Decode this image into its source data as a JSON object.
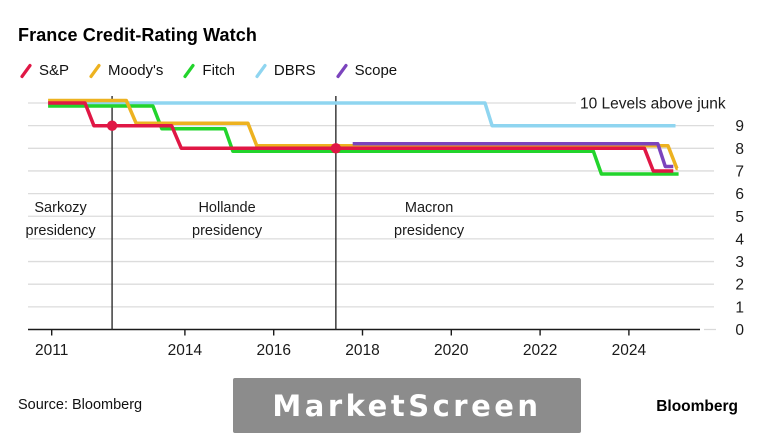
{
  "title": "France Credit-Rating Watch",
  "legend": [
    {
      "label": "S&P",
      "color": "#e01745"
    },
    {
      "label": "Moody's",
      "color": "#edb220"
    },
    {
      "label": "Fitch",
      "color": "#22d42c"
    },
    {
      "label": "DBRS",
      "color": "#8fd5f0"
    },
    {
      "label": "Scope",
      "color": "#7b44bd"
    }
  ],
  "chart_data": {
    "type": "line",
    "title": "France Credit-Rating Watch",
    "unit_label": "Levels above junk",
    "ytop_label": "10 Levels above junk",
    "ylim": [
      0,
      10
    ],
    "yticks": [
      0,
      1,
      2,
      3,
      4,
      5,
      6,
      7,
      8,
      9
    ],
    "xticks": [
      2011,
      2014,
      2016,
      2018,
      2020,
      2022,
      2024
    ],
    "xlim": [
      2010.9,
      2025.2
    ],
    "grid": true,
    "legend_position": "top-left",
    "series": [
      {
        "name": "S&P",
        "color": "#e01745",
        "points": [
          [
            2010.92,
            10
          ],
          [
            2011.75,
            10
          ],
          [
            2011.95,
            9
          ],
          [
            2013.7,
            9
          ],
          [
            2013.92,
            8
          ],
          [
            2024.35,
            8
          ],
          [
            2024.55,
            7
          ],
          [
            2025.0,
            7
          ]
        ]
      },
      {
        "name": "Moody's",
        "color": "#edb220",
        "points": [
          [
            2010.92,
            10
          ],
          [
            2012.68,
            10
          ],
          [
            2012.9,
            9
          ],
          [
            2015.42,
            9
          ],
          [
            2015.62,
            8
          ],
          [
            2024.88,
            8
          ],
          [
            2025.08,
            7
          ],
          [
            2025.1,
            7
          ]
        ]
      },
      {
        "name": "Fitch",
        "color": "#22d42c",
        "points": [
          [
            2010.92,
            10
          ],
          [
            2013.28,
            10
          ],
          [
            2013.48,
            9
          ],
          [
            2014.9,
            9
          ],
          [
            2015.08,
            8
          ],
          [
            2023.2,
            8
          ],
          [
            2023.38,
            7
          ],
          [
            2025.12,
            7
          ]
        ]
      },
      {
        "name": "DBRS",
        "color": "#8fd5f0",
        "points": [
          [
            2010.92,
            10
          ],
          [
            2020.76,
            10
          ],
          [
            2020.92,
            9
          ],
          [
            2025.05,
            9
          ]
        ]
      },
      {
        "name": "Scope",
        "color": "#7b44bd",
        "points": [
          [
            2017.78,
            8
          ],
          [
            2024.65,
            8
          ],
          [
            2024.82,
            7
          ],
          [
            2025.0,
            7
          ]
        ]
      }
    ],
    "markers": [
      {
        "series": "S&P",
        "x": 2012.36,
        "y": 9
      },
      {
        "series": "S&P",
        "x": 2017.4,
        "y": 8
      }
    ],
    "event_lines": [
      2012.36,
      2017.4
    ],
    "annotations": [
      {
        "lines": [
          "Sarkozy",
          "presidency"
        ],
        "x_year": 2011.2
      },
      {
        "lines": [
          "Hollande",
          "presidency"
        ],
        "x_year": 2014.95
      },
      {
        "lines": [
          "Macron",
          "presidency"
        ],
        "x_year": 2019.5
      }
    ]
  },
  "footer": {
    "source": "Source: Bloomberg",
    "watermark": "MarketScreen",
    "brand": "Bloomberg"
  }
}
